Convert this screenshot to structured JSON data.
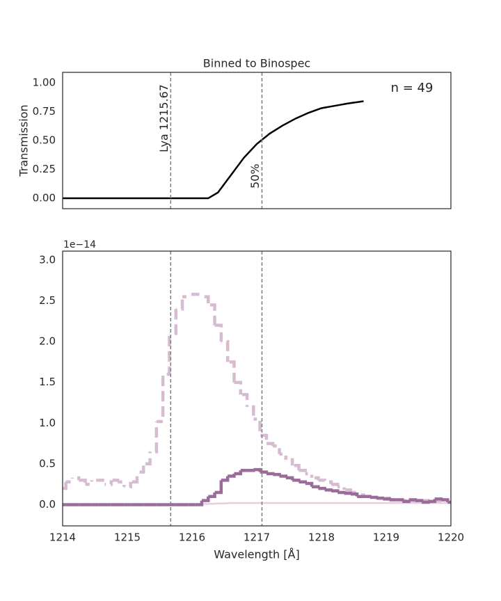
{
  "chart_data": [
    {
      "type": "line",
      "title": "Binned to Binospec",
      "ylabel": "Transmission",
      "annotation": "n = 49",
      "xlim": [
        1214,
        1220
      ],
      "ylim": [
        -0.09,
        1.09
      ],
      "yticks": [
        {
          "value": 0,
          "label": "0.00"
        },
        {
          "value": 0.25,
          "label": "0.25"
        },
        {
          "value": 0.5,
          "label": "0.50"
        },
        {
          "value": 0.75,
          "label": "0.75"
        },
        {
          "value": 1,
          "label": "1.00"
        }
      ],
      "x": [
        1214,
        1216.25,
        1216.4,
        1216.6,
        1216.8,
        1217.0,
        1217.2,
        1217.4,
        1217.6,
        1217.8,
        1218.0,
        1218.2,
        1218.4,
        1218.65
      ],
      "series": [
        {
          "color": "#000000",
          "values": [
            0,
            0,
            0.05,
            0.2,
            0.35,
            0.47,
            0.56,
            0.63,
            0.69,
            0.74,
            0.78,
            0.8,
            0.82,
            0.84
          ]
        }
      ],
      "vlines": [
        {
          "x": 1215.67,
          "label": "Lya 1215.67"
        },
        {
          "x": 1217.08,
          "label": "50%"
        }
      ],
      "grid": false
    },
    {
      "type": "step",
      "xlabel": "Wavelength [Å]",
      "offset_label": "1e−14",
      "xlim": [
        1214,
        1220
      ],
      "ylim": [
        -0.26,
        3.11
      ],
      "xticks": [
        1214,
        1215,
        1216,
        1217,
        1218,
        1219,
        1220
      ],
      "yticks": [
        {
          "value": 0,
          "label": "0.0"
        },
        0.5,
        {
          "value": 1,
          "label": "1.0"
        },
        1.5,
        {
          "value": 2,
          "label": "2.0"
        },
        2.5,
        {
          "value": 3,
          "label": "3.0"
        }
      ],
      "x": [
        1214.0,
        1214.1,
        1214.2,
        1214.3,
        1214.4,
        1214.5,
        1214.6,
        1214.7,
        1214.8,
        1214.9,
        1215.0,
        1215.1,
        1215.2,
        1215.3,
        1215.4,
        1215.5,
        1215.6,
        1215.7,
        1215.8,
        1215.9,
        1216.0,
        1216.1,
        1216.2,
        1216.3,
        1216.4,
        1216.5,
        1216.6,
        1216.7,
        1216.8,
        1216.9,
        1217.0,
        1217.1,
        1217.2,
        1217.3,
        1217.4,
        1217.5,
        1217.6,
        1217.7,
        1217.8,
        1217.9,
        1218.0,
        1218.1,
        1218.2,
        1218.3,
        1218.4,
        1218.5,
        1218.6,
        1218.7,
        1218.8,
        1218.9,
        1219.0,
        1219.1,
        1219.2,
        1219.3,
        1219.4,
        1219.5,
        1219.6,
        1219.7,
        1219.8,
        1219.9,
        1220.0
      ],
      "series": [
        {
          "color": "#d5bcd0",
          "linestyle": "dashed",
          "linewidth": 4.5,
          "drawstyle": "steps",
          "values": [
            0.2,
            0.28,
            0.33,
            0.3,
            0.25,
            0.3,
            0.3,
            0.25,
            0.3,
            0.28,
            0.22,
            0.28,
            0.4,
            0.5,
            0.65,
            1.02,
            1.6,
            2.1,
            2.4,
            2.55,
            2.58,
            2.58,
            2.55,
            2.45,
            2.2,
            2.0,
            1.75,
            1.5,
            1.35,
            1.2,
            1.05,
            0.85,
            0.75,
            0.72,
            0.62,
            0.55,
            0.48,
            0.42,
            0.38,
            0.33,
            0.3,
            0.28,
            0.25,
            0.22,
            0.18,
            0.15,
            0.12,
            0.1,
            0.09,
            0.08,
            0.08,
            0.06,
            0.06,
            0.05,
            0.05,
            0.04,
            0.05,
            0.04,
            0.03,
            0.03,
            0.03
          ]
        },
        {
          "color": "#e3cfe0",
          "linestyle": "solid",
          "linewidth": 2.5,
          "drawstyle": "default",
          "values": [
            0,
            0,
            0,
            0,
            0,
            0,
            0,
            0,
            0,
            0,
            0,
            0,
            0,
            0,
            0,
            0,
            0,
            0,
            0,
            0,
            0,
            0.005,
            0.01,
            0.01,
            0.015,
            0.015,
            0.02,
            0.02,
            0.02,
            0.02,
            0.02,
            0.02,
            0.02,
            0.02,
            0.02,
            0.02,
            0.02,
            0.02,
            0.02,
            0.02,
            0.02,
            0.02,
            0.02,
            0.02,
            0.02,
            0.02,
            0.02,
            0.02,
            0.02,
            0.02,
            0.02,
            0.02,
            0.02,
            0.02,
            0.02,
            0.02,
            0.02,
            0.02,
            0.02,
            0.02,
            0.02
          ]
        },
        {
          "color": "#9b6b99",
          "linestyle": "solid",
          "linewidth": 4.5,
          "drawstyle": "steps",
          "values": [
            0,
            0,
            0,
            0,
            0,
            0,
            0,
            0,
            0,
            0,
            0,
            0,
            0,
            0,
            0,
            0,
            0,
            0,
            0,
            0,
            0,
            0,
            0.05,
            0.1,
            0.15,
            0.3,
            0.35,
            0.38,
            0.42,
            0.42,
            0.43,
            0.4,
            0.38,
            0.37,
            0.35,
            0.33,
            0.3,
            0.28,
            0.26,
            0.22,
            0.2,
            0.18,
            0.17,
            0.15,
            0.14,
            0.13,
            0.1,
            0.1,
            0.09,
            0.08,
            0.07,
            0.06,
            0.06,
            0.04,
            0.06,
            0.05,
            0.03,
            0.04,
            0.07,
            0.06,
            0.03
          ]
        }
      ],
      "vlines": [
        {
          "x": 1215.67
        },
        {
          "x": 1217.08
        }
      ],
      "grid": false
    }
  ]
}
